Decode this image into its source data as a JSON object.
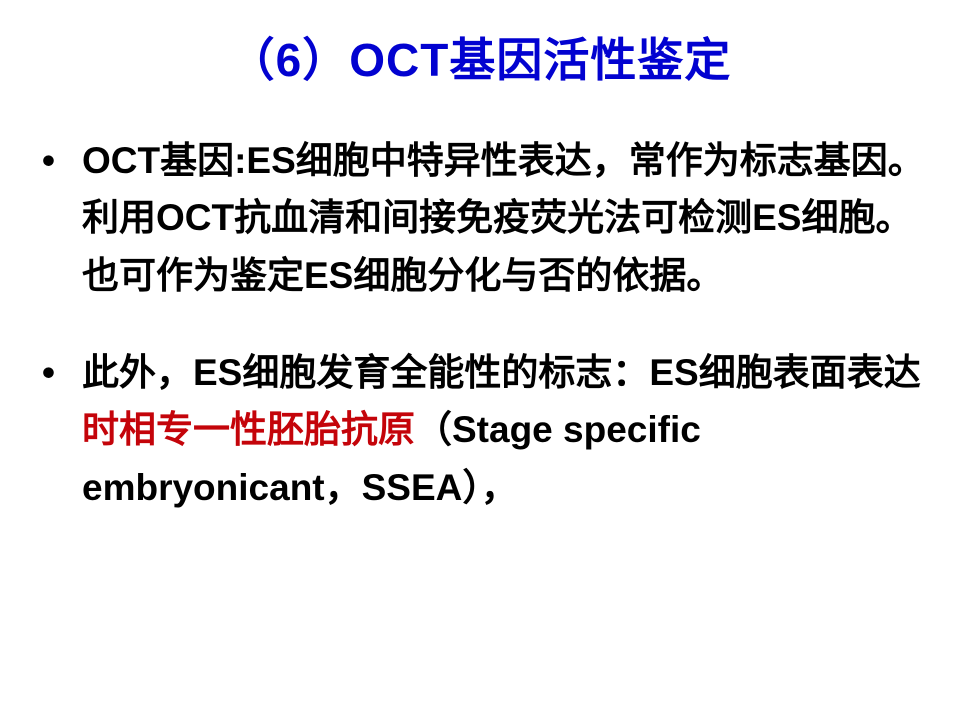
{
  "slide": {
    "title": {
      "text": "（6）OCT基因活性鉴定",
      "color": "#0202d0",
      "fontsize_pt": 35
    },
    "bullets": [
      {
        "segments": [
          {
            "text": "OCT基因:ES细胞中特异性表达，常作为标志基因。利用OCT抗血清和间接免疫荧光法可检测ES细胞。也可作为鉴定ES细胞分化与否的依据。",
            "color": "#000000"
          }
        ]
      },
      {
        "segments": [
          {
            "text": "此外，ES细胞发育全能性的标志：ES细胞表面表达",
            "color": "#000000"
          },
          {
            "text": "时相专一性胚胎抗原",
            "color": "#c4040a"
          },
          {
            "text": "（Stage specific embryonicant，SSEA），",
            "color": "#000000"
          }
        ]
      }
    ],
    "body_fontsize_pt": 28,
    "body_line_height": 1.55,
    "background_color": "#ffffff",
    "bullet_marker": "•",
    "bullet_marker_color": "#000000",
    "font_family": "SimHei / Arial (bold)"
  }
}
